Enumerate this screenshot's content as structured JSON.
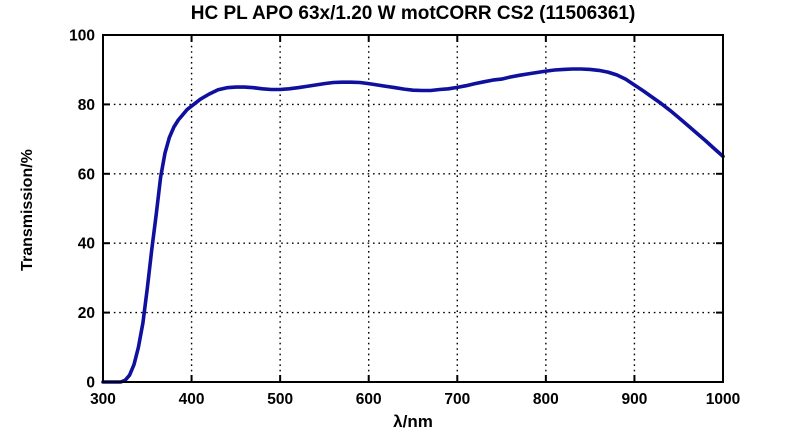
{
  "chart_data": {
    "type": "line",
    "title": "HC PL APO 63x/1.20 W motCORR CS2 (11506361)",
    "xlabel": "λ/nm",
    "ylabel": "Transmission/%",
    "xlim": [
      300,
      1000
    ],
    "ylim": [
      0,
      100
    ],
    "x_ticks": [
      300,
      400,
      500,
      600,
      700,
      800,
      900,
      1000
    ],
    "y_ticks": [
      0,
      20,
      40,
      60,
      80,
      100
    ],
    "grid": "dotted",
    "legend": "none",
    "line_color": "#10109f",
    "axis_color": "#000000",
    "background_color": "#ffffff",
    "series": [
      {
        "name": "transmission",
        "x": [
          300,
          305,
          310,
          315,
          320,
          325,
          330,
          335,
          340,
          345,
          350,
          355,
          360,
          365,
          370,
          375,
          380,
          385,
          390,
          395,
          400,
          410,
          420,
          430,
          440,
          450,
          460,
          470,
          480,
          490,
          500,
          510,
          520,
          530,
          540,
          550,
          560,
          570,
          580,
          590,
          600,
          610,
          620,
          630,
          640,
          650,
          660,
          670,
          680,
          690,
          700,
          710,
          720,
          730,
          740,
          750,
          760,
          770,
          780,
          790,
          800,
          810,
          820,
          830,
          840,
          850,
          860,
          870,
          880,
          890,
          900,
          910,
          920,
          930,
          940,
          950,
          960,
          970,
          980,
          990,
          1000
        ],
        "y": [
          0,
          0,
          0,
          0,
          0,
          0.5,
          2,
          5,
          10,
          17,
          27,
          38,
          48,
          59,
          66,
          70.5,
          73.5,
          75.5,
          77,
          78.5,
          79.5,
          81.5,
          83,
          84.2,
          84.8,
          85,
          85,
          84.8,
          84.5,
          84.3,
          84.3,
          84.5,
          84.8,
          85.2,
          85.6,
          86,
          86.3,
          86.4,
          86.4,
          86.3,
          86,
          85.6,
          85.2,
          84.8,
          84.4,
          84.1,
          84,
          84,
          84.3,
          84.5,
          84.9,
          85.4,
          86,
          86.5,
          87,
          87.3,
          87.9,
          88.4,
          88.8,
          89.2,
          89.6,
          89.9,
          90.1,
          90.2,
          90.2,
          90.1,
          89.8,
          89.3,
          88.5,
          87.3,
          85.6,
          83.9,
          82.1,
          80.3,
          78.3,
          76.2,
          74,
          71.8,
          69.6,
          67.3,
          65
        ]
      }
    ]
  }
}
